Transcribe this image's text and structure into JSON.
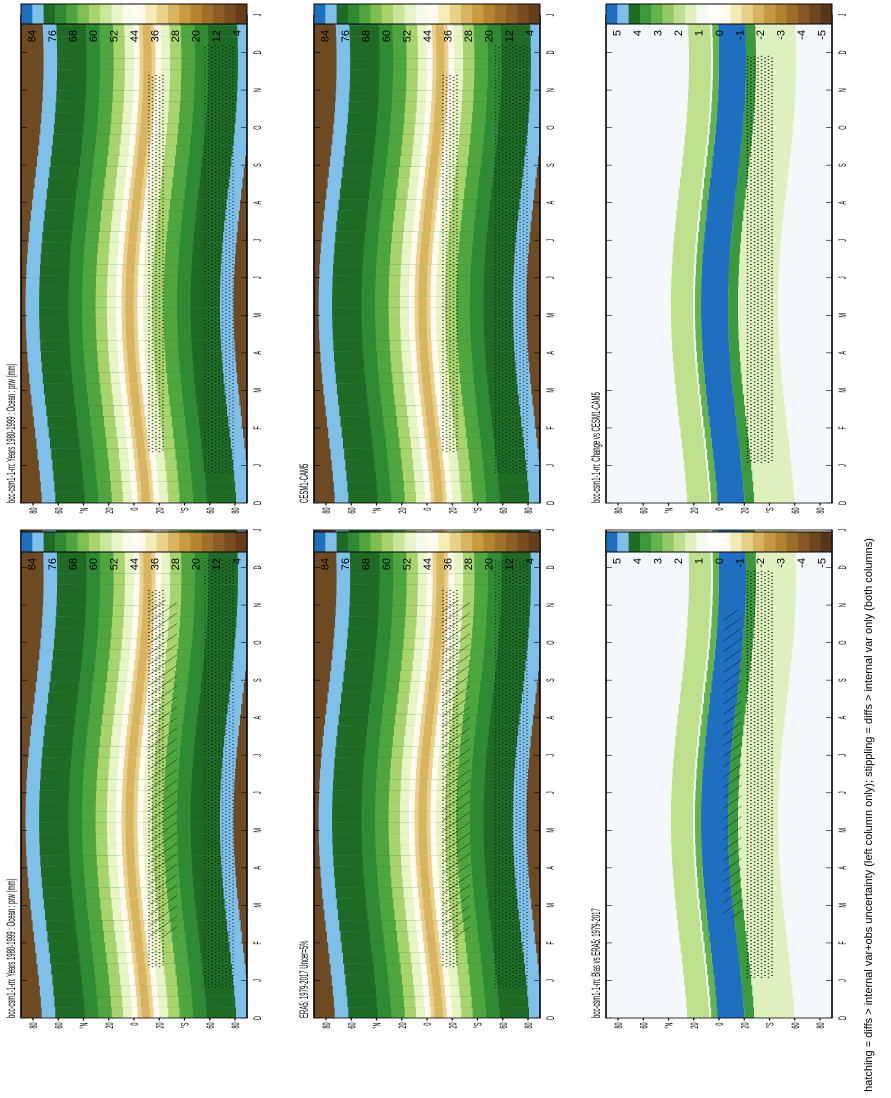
{
  "figure": {
    "footnote": "hatching = diffs > internal var+obs uncertainty (left column only); stippling = diffs > internal var only (both columns)",
    "months": [
      "D",
      "J",
      "F",
      "M",
      "A",
      "M",
      "J",
      "J",
      "A",
      "S",
      "O",
      "N",
      "D",
      "J"
    ],
    "lat_ticks": [
      "80",
      "60",
      "°N",
      "20",
      "0",
      "20",
      "°S",
      "60",
      "80"
    ]
  },
  "colorbars": [
    {
      "id": "abs",
      "labels": [
        "84",
        "76",
        "68",
        "60",
        "52",
        "44",
        "36",
        "28",
        "20",
        "12",
        "4"
      ],
      "colors": [
        "#1f6fc0",
        "#7fc0ea",
        "#1f6b26",
        "#2f8a34",
        "#4fa63e",
        "#7ebe53",
        "#a8d46e",
        "#c9e69a",
        "#e6f4c6",
        "#f7fbee",
        "#fffbf0",
        "#f6edb6",
        "#ead189",
        "#d9b460",
        "#c89b3e",
        "#b5842e",
        "#a0702a",
        "#8c5d25",
        "#784c20",
        "#643d1b"
      ]
    },
    {
      "id": "diff",
      "labels": [
        "5",
        "4",
        "3",
        "2",
        "1",
        "0",
        "-1",
        "-2",
        "-3",
        "-4",
        "-5"
      ],
      "colors": [
        "#1f6fc0",
        "#7fc0ea",
        "#1f6b26",
        "#3a9a3c",
        "#65b44a",
        "#93ca64",
        "#bce08c",
        "#dff0bf",
        "#f4fbee",
        "#ffffff",
        "#fffbef",
        "#f4eab3",
        "#e7cf8a",
        "#d7b262",
        "#c69840",
        "#b3812f",
        "#9c6c2a",
        "#855824",
        "#6e461e",
        "#58361a"
      ]
    }
  ],
  "chart_data": [
    {
      "type": "heatmap",
      "title": "bcc-csm1-1-m: Years 1980-1999 : Ocean : prw (mm)",
      "x": [
        "D",
        "J",
        "F",
        "M",
        "A",
        "M",
        "J",
        "J",
        "A",
        "S",
        "O",
        "N",
        "D",
        "J"
      ],
      "y": [
        "80",
        "60",
        "°N",
        "20",
        "0",
        "20",
        "°S",
        "60",
        "80"
      ],
      "colorbar": "abs",
      "value_range": [
        4,
        84
      ]
    },
    {
      "type": "heatmap",
      "title": "bcc-csm1-1-m: Years 1980-1999 : Ocean : prw (mm)",
      "x": [
        "D",
        "J",
        "F",
        "M",
        "A",
        "M",
        "J",
        "J",
        "A",
        "S",
        "O",
        "N",
        "D",
        "J"
      ],
      "y": [
        "80",
        "60",
        "°N",
        "20",
        "0",
        "20",
        "°S",
        "60",
        "80"
      ],
      "colorbar": "abs",
      "value_range": [
        4,
        84
      ]
    },
    {
      "type": "heatmap",
      "title": "ERA5: 1979-2017 Uncer=5%",
      "x": [
        "D",
        "J",
        "F",
        "M",
        "A",
        "M",
        "J",
        "J",
        "A",
        "S",
        "O",
        "N",
        "D",
        "J"
      ],
      "y": [
        "80",
        "60",
        "°N",
        "20",
        "0",
        "20",
        "°S",
        "60",
        "80"
      ],
      "colorbar": "abs",
      "value_range": [
        4,
        84
      ]
    },
    {
      "type": "heatmap",
      "title": "CESM1-CAM5",
      "x": [
        "D",
        "J",
        "F",
        "M",
        "A",
        "M",
        "J",
        "J",
        "A",
        "S",
        "O",
        "N",
        "D",
        "J"
      ],
      "y": [
        "80",
        "60",
        "°N",
        "20",
        "0",
        "20",
        "°S",
        "60",
        "80"
      ],
      "colorbar": "abs",
      "value_range": [
        4,
        84
      ]
    },
    {
      "type": "heatmap",
      "title": "bcc-csm1-1-m: Bias vs ERA5: 1979-2017",
      "x": [
        "D",
        "J",
        "F",
        "M",
        "A",
        "M",
        "J",
        "J",
        "A",
        "S",
        "O",
        "N",
        "D",
        "J"
      ],
      "y": [
        "80",
        "60",
        "°N",
        "20",
        "0",
        "20",
        "°S",
        "60",
        "80"
      ],
      "colorbar": "diff",
      "value_range": [
        -5,
        5
      ]
    },
    {
      "type": "heatmap",
      "title": "bcc-csm1-1-m: Change vs CESM1-CAM5",
      "x": [
        "D",
        "J",
        "F",
        "M",
        "A",
        "M",
        "J",
        "J",
        "A",
        "S",
        "O",
        "N",
        "D",
        "J"
      ],
      "y": [
        "80",
        "60",
        "°N",
        "20",
        "0",
        "20",
        "°S",
        "60",
        "80"
      ],
      "colorbar": "diff",
      "value_range": [
        -5,
        5
      ]
    }
  ]
}
